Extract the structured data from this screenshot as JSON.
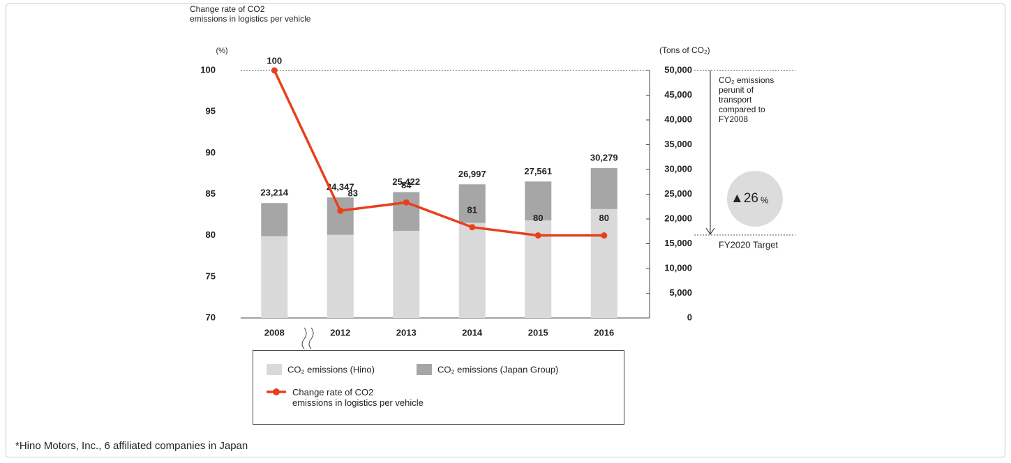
{
  "chart_data": {
    "type": "bar_line",
    "y_label": "Change rate of CO2\nemissions in logistics per vehicle",
    "y_unit": "(%)",
    "y2_unit": "(Tons of CO₂)",
    "categories": [
      "2008",
      "2012",
      "2013",
      "2014",
      "2015",
      "2016"
    ],
    "series": [
      {
        "name": "CO₂ emissions (Hino)",
        "color": "#d9d9d9",
        "axis": "y2",
        "values": [
          16500,
          16800,
          17600,
          19200,
          19700,
          22000
        ]
      },
      {
        "name": "CO₂ emissions (Japan Group)",
        "color": "#a6a6a6",
        "axis": "y2",
        "values": [
          6714,
          7547,
          7822,
          7797,
          7861,
          8279
        ]
      },
      {
        "name": "Change rate of CO2\nemissions in logistics per vehicle",
        "color": "#e8401c",
        "axis": "y",
        "type": "line",
        "values": [
          100,
          83,
          84,
          81,
          80,
          80
        ]
      }
    ],
    "totals": [
      23214,
      24347,
      25422,
      26997,
      27561,
      30279
    ],
    "totals_labels": [
      "23,214",
      "24,347",
      "25,422",
      "26,997",
      "27,561",
      "30,279"
    ],
    "ylim": [
      70,
      100
    ],
    "yticks": [
      70,
      75,
      80,
      85,
      90,
      95,
      100
    ],
    "y2lim": [
      0,
      50000
    ],
    "y2ticks": [
      0,
      {
        "value": 5000,
        "label": "5,000"
      },
      {
        "value": 10000,
        "label": "10,000"
      },
      {
        "value": 15000,
        "label": "15,000"
      },
      {
        "value": 20000,
        "label": "20,000"
      },
      {
        "value": 25000,
        "label": "25,000"
      },
      {
        "value": 30000,
        "label": "30,000"
      },
      {
        "value": 35000,
        "label": "35,000"
      },
      {
        "value": 40000,
        "label": "40,000"
      },
      {
        "value": 45000,
        "label": "45,000"
      },
      {
        "value": 50000,
        "label": "50,000"
      }
    ],
    "annotation": "CO₂ emissions\nperunit of\ntransport\ncompared to\nFY2008",
    "badge_value": "▲26",
    "badge_unit": "%",
    "target_label": "FY2020 Target",
    "footnote": "*Hino Motors, Inc., 6 affiliated companies in Japan"
  }
}
